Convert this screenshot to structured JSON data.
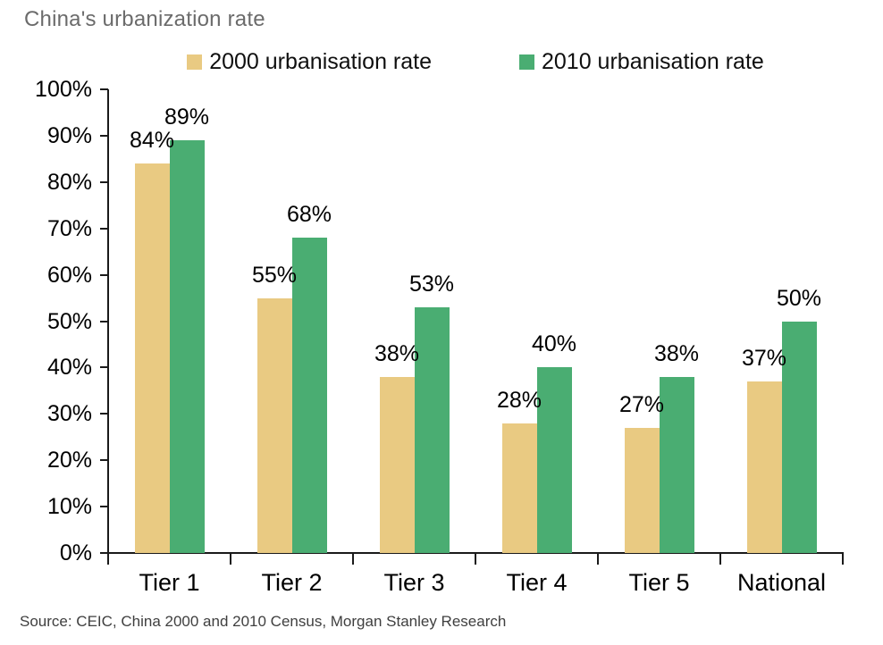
{
  "title": "China's urbanization rate",
  "source": "Source: CEIC, China 2000 and 2010 Census, Morgan Stanley Research",
  "colors": {
    "series_2000": "#E9CA82",
    "series_2010": "#4AAD72",
    "axis": "#1a1a1a",
    "title_text": "#6b6b6b",
    "source_text": "#3f3f3f",
    "background": "#ffffff"
  },
  "chart_data": {
    "type": "bar",
    "title": "China's urbanization rate",
    "categories": [
      "Tier 1",
      "Tier 2",
      "Tier 3",
      "Tier 4",
      "Tier 5",
      "National"
    ],
    "series": [
      {
        "name": "2000 urbanisation rate",
        "color": "#E9CA82",
        "values": [
          84,
          55,
          38,
          28,
          27,
          37
        ]
      },
      {
        "name": "2010 urbanisation rate",
        "color": "#4AAD72",
        "values": [
          89,
          68,
          53,
          40,
          38,
          50
        ]
      }
    ],
    "data_labels": [
      [
        "84%",
        "55%",
        "38%",
        "28%",
        "27%",
        "37%"
      ],
      [
        "89%",
        "68%",
        "53%",
        "40%",
        "38%",
        "50%"
      ]
    ],
    "xlabel": "",
    "ylabel": "",
    "ylim": [
      0,
      100
    ],
    "yticks": [
      "0%",
      "10%",
      "20%",
      "30%",
      "40%",
      "50%",
      "60%",
      "70%",
      "80%",
      "90%",
      "100%"
    ],
    "grid": false,
    "legend_position": "top",
    "legend": [
      "2000 urbanisation rate",
      "2010 urbanisation rate"
    ]
  }
}
